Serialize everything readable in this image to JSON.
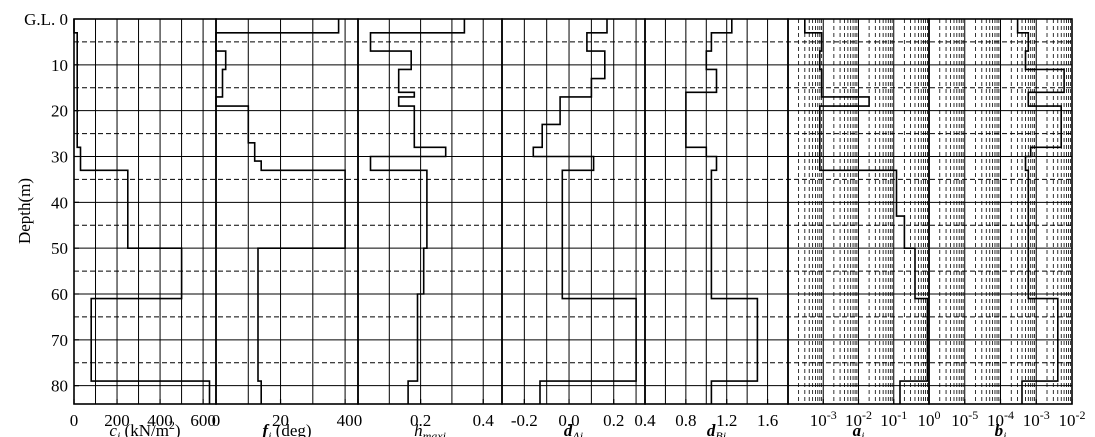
{
  "y_axis": {
    "label": "Depth(m)",
    "top_label": "G.L. 0",
    "ticks": [
      10,
      20,
      30,
      40,
      50,
      60,
      70,
      80
    ],
    "range": [
      0,
      84
    ]
  },
  "chart_data": [
    {
      "type": "line",
      "xlabel": "c_i (kN/m²)",
      "xlabel_parts": {
        "sym": "c",
        "sub": "i",
        "unit": " (kN/m",
        "sup": "2",
        "tail": ")"
      },
      "xlim": [
        0,
        660
      ],
      "xticks": [
        0,
        200,
        400,
        600
      ],
      "tick_labels": [
        "0",
        "200",
        "400",
        "600"
      ],
      "grid_x": [
        0,
        100,
        200,
        300,
        400,
        500,
        600
      ],
      "series": [
        {
          "x": [
            0,
            0,
            15,
            15,
            30,
            30,
            250,
            250,
            500,
            500,
            80,
            80,
            630,
            630
          ],
          "y": [
            0,
            3,
            3,
            28,
            28,
            33,
            33,
            50,
            50,
            61,
            61,
            79,
            79,
            84
          ]
        }
      ]
    },
    {
      "type": "line",
      "xlabel": "φ_i (deg)",
      "xlabel_parts": {
        "sym": "f",
        "sub": "i",
        "unit": " (deg)"
      },
      "xlim": [
        0,
        44
      ],
      "xticks": [
        0,
        20,
        40
      ],
      "tick_labels": [
        "0",
        "20",
        "40"
      ],
      "grid_x": [
        0,
        10,
        20,
        30,
        40
      ],
      "series": [
        {
          "x": [
            38,
            38,
            0,
            0,
            3,
            3,
            2,
            2,
            0,
            0,
            10,
            10,
            12,
            12,
            14,
            14,
            40,
            40,
            13,
            13,
            14,
            14
          ],
          "y": [
            0,
            3,
            3,
            7,
            7,
            11,
            11,
            17,
            17,
            19,
            19,
            27,
            27,
            31,
            31,
            33,
            33,
            50,
            50,
            79,
            79,
            84
          ]
        }
      ]
    },
    {
      "type": "line",
      "xlabel": "h_maxi",
      "xlabel_parts": {
        "sym": "h",
        "sub": "maxi",
        "unit": ""
      },
      "xlim": [
        0,
        0.46
      ],
      "xticks": [
        0,
        0.2,
        0.4
      ],
      "tick_labels": [
        "0",
        "0.2",
        "0.4"
      ],
      "grid_x": [
        0,
        0.1,
        0.2,
        0.3,
        0.4
      ],
      "series": [
        {
          "x": [
            0.34,
            0.34,
            0.04,
            0.04,
            0.17,
            0.17,
            0.13,
            0.13,
            0.18,
            0.18,
            0.13,
            0.13,
            0.18,
            0.18,
            0.28,
            0.28,
            0.04,
            0.04,
            0.22,
            0.22,
            0.21,
            0.21,
            0.19,
            0.19,
            0.16,
            0.16
          ],
          "y": [
            0,
            3,
            3,
            7,
            7,
            11,
            11,
            16,
            16,
            17,
            17,
            19,
            19,
            28,
            28,
            30,
            30,
            33,
            33,
            50,
            50,
            60,
            60,
            79,
            79,
            84
          ]
        }
      ]
    },
    {
      "type": "line",
      "xlabel": "δ_Ai",
      "xlabel_parts": {
        "sym": "d",
        "sub": "Ai",
        "unit": ""
      },
      "xlim": [
        -0.3,
        0.34
      ],
      "xticks": [
        -0.2,
        0.0,
        0.2
      ],
      "tick_labels": [
        "-0.2",
        "0.0",
        "0.2"
      ],
      "grid_x": [
        -0.3,
        -0.2,
        -0.1,
        0.0,
        0.1,
        0.2,
        0.3
      ],
      "series": [
        {
          "x": [
            0.17,
            0.17,
            0.08,
            0.08,
            0.16,
            0.16,
            0.1,
            0.1,
            -0.04,
            -0.04,
            -0.12,
            -0.12,
            -0.16,
            -0.16,
            0.11,
            0.11,
            -0.03,
            -0.03,
            0.3,
            0.3,
            -0.13,
            -0.13
          ],
          "y": [
            0,
            3,
            3,
            7,
            7,
            13,
            13,
            17,
            17,
            23,
            23,
            28,
            28,
            30,
            30,
            33,
            33,
            61,
            61,
            79,
            79,
            84
          ]
        }
      ]
    },
    {
      "type": "line",
      "xlabel": "δ_Bi",
      "xlabel_parts": {
        "sym": "d",
        "sub": "Bi",
        "unit": ""
      },
      "xlim": [
        0.4,
        1.8
      ],
      "xticks": [
        0.4,
        0.8,
        1.2,
        1.6
      ],
      "tick_labels": [
        "0.4",
        "0.8",
        "1.2",
        "1.6"
      ],
      "grid_x": [
        0.4,
        0.6,
        0.8,
        1.0,
        1.2,
        1.4,
        1.6,
        1.8
      ],
      "series": [
        {
          "x": [
            1.25,
            1.25,
            1.05,
            1.05,
            1.0,
            1.0,
            1.1,
            1.1,
            0.8,
            0.8,
            0.8,
            0.8,
            1.0,
            1.0,
            1.1,
            1.1,
            1.05,
            1.05,
            1.5,
            1.5,
            1.05,
            1.05
          ],
          "y": [
            0,
            3,
            3,
            7,
            7,
            11,
            11,
            16,
            16,
            19,
            19,
            28,
            28,
            30,
            30,
            33,
            33,
            61,
            61,
            79,
            79,
            84
          ]
        }
      ]
    },
    {
      "type": "line",
      "xlabel": "α_i",
      "xlabel_parts": {
        "sym": "a",
        "sub": "i",
        "unit": ""
      },
      "scale": "log",
      "xlim_exp": [
        -4,
        0
      ],
      "xticks": [
        0.001,
        0.01,
        0.1,
        1
      ],
      "tick_labels": [
        {
          "base": "10",
          "exp": "-3"
        },
        {
          "base": "10",
          "exp": "-2"
        },
        {
          "base": "10",
          "exp": "-1"
        },
        {
          "base": "10",
          "exp": "0"
        }
      ],
      "series": [
        {
          "x": [
            0.0003,
            0.0003,
            0.0009,
            0.0009,
            0.0008,
            0.0008,
            0.0009,
            0.0009,
            0.02,
            0.02,
            0.0008,
            0.0008,
            0.12,
            0.12,
            0.2,
            0.2,
            0.4,
            0.4,
            0.9,
            0.9,
            0.15,
            0.15
          ],
          "y": [
            0,
            3,
            3,
            7,
            7,
            11,
            11,
            17,
            17,
            19,
            19,
            33,
            33,
            43,
            43,
            50,
            50,
            61,
            61,
            79,
            79,
            84
          ]
        }
      ]
    },
    {
      "type": "line",
      "xlabel": "β_i",
      "xlabel_parts": {
        "sym": "b",
        "sub": "i",
        "unit": ""
      },
      "scale": "log",
      "xlim_exp": [
        -6,
        -2
      ],
      "xticks": [
        1e-05,
        0.0001,
        0.001,
        0.01
      ],
      "tick_labels": [
        {
          "base": "10",
          "exp": "-5"
        },
        {
          "base": "10",
          "exp": "-4"
        },
        {
          "base": "10",
          "exp": "-3"
        },
        {
          "base": "10",
          "exp": "-2"
        }
      ],
      "series": [
        {
          "x": [
            0.0003,
            0.0003,
            0.0006,
            0.0006,
            0.0005,
            0.0005,
            0.006,
            0.006,
            0.0006,
            0.0006,
            0.005,
            0.005,
            0.0007,
            0.0007,
            0.0005,
            0.0005,
            0.0006,
            0.0006,
            0.004,
            0.004,
            0.0004,
            0.0004
          ],
          "y": [
            0,
            3,
            3,
            7,
            7,
            11,
            11,
            16,
            16,
            19,
            19,
            28,
            28,
            30,
            30,
            33,
            33,
            61,
            61,
            79,
            79,
            84
          ]
        }
      ]
    }
  ]
}
